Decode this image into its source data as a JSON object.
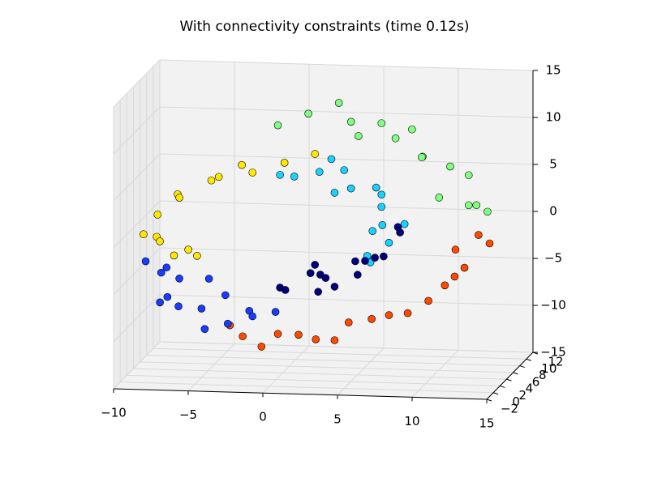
{
  "chart_data": {
    "type": "scatter3d",
    "title": "With connectivity constraints (time 0.12s)",
    "xlim": [
      -10,
      15
    ],
    "ylim": [
      -2,
      12
    ],
    "zlim": [
      -15,
      15
    ],
    "xticks": [
      {
        "value": -10,
        "label": "−10"
      },
      {
        "value": -5,
        "label": "−5"
      },
      0,
      5,
      10,
      15
    ],
    "yticks": [
      {
        "value": -2,
        "label": "−2"
      },
      0,
      2,
      4,
      6,
      8,
      10,
      12
    ],
    "zticks": [
      {
        "value": -15,
        "label": "−15"
      },
      {
        "value": -10,
        "label": "−10"
      },
      {
        "value": -5,
        "label": "−5"
      },
      0,
      5,
      10,
      15
    ],
    "grid": true,
    "series": [
      {
        "color": "#7fff7f",
        "x": [
          -0.1,
          1.5,
          3.1,
          4.8,
          6.4,
          8.0,
          9.6,
          11.0,
          11.8,
          13.2,
          13.5,
          11.8,
          10.7,
          9.1,
          6.9,
          5.3
        ],
        "y": [
          3,
          5,
          7,
          3,
          5,
          7,
          3,
          5,
          7,
          3,
          5,
          7,
          3,
          5,
          7,
          3
        ],
        "z": [
          11.7,
          12.3,
          12.8,
          12.3,
          11.5,
          10.2,
          8.8,
          7.1,
          5.5,
          3.8,
          2.4,
          2.3,
          4.5,
          8.0,
          9.2,
          10.8
        ]
      },
      {
        "color": "#ff4a00",
        "x": [
          12.9,
          13.2,
          12.4,
          11.3,
          10.2,
          8.6,
          6.9,
          5.3,
          3.7,
          2.0,
          0.4,
          -1.2,
          -2.9,
          -4.2,
          -0.1,
          4.2,
          9.1,
          11.8
        ],
        "y": [
          5,
          7,
          3,
          5,
          7,
          3,
          5,
          7,
          3,
          5,
          7,
          3,
          5,
          7,
          3,
          5,
          7,
          3
        ],
        "z": [
          -0.1,
          -1.7,
          -2.9,
          -4.6,
          -6.3,
          -7.9,
          -8.9,
          -10.1,
          -11.0,
          -11.7,
          -12.0,
          -11.9,
          -11.6,
          -11.2,
          -10.5,
          -9.8,
          -8.0,
          -1.0
        ]
      },
      {
        "color": "#1a3cff",
        "x": [
          -9.4,
          -8.8,
          -8.0,
          -7.2,
          -6.1,
          -5.0,
          -3.9,
          -2.9,
          -1.8,
          -0.7,
          -5.6,
          -6.7,
          -8.0,
          -4.5,
          -7.5
        ],
        "y": [
          5,
          7,
          3,
          5,
          7,
          3,
          5,
          7,
          3,
          5,
          7,
          3,
          5,
          7,
          3
        ],
        "z": [
          -3.9,
          -5.8,
          -7.5,
          -8.6,
          -9.5,
          -10.2,
          -10.3,
          -9.6,
          -8.7,
          -8.9,
          -6.3,
          -4.9,
          -4.5,
          -8.0,
          -6.9
        ]
      },
      {
        "color": "#ffe800",
        "x": [
          -9.1,
          -9.1,
          -8.6,
          -7.7,
          -6.7,
          -5.0,
          -3.4,
          -1.8,
          -0.1,
          1.5,
          -6.1,
          -7.5,
          -6.4,
          -8.0,
          -4.5
        ],
        "y": [
          7,
          3,
          5,
          7,
          3,
          5,
          7,
          3,
          5,
          7,
          3,
          5,
          7,
          3,
          5
        ],
        "z": [
          -2.0,
          -0.3,
          1.1,
          2.6,
          3.7,
          4.9,
          5.9,
          6.6,
          7.0,
          7.3,
          -1.8,
          -3.2,
          -3.9,
          -1.0,
          5.3
        ]
      },
      {
        "color": "#19d2ff",
        "x": [
          -0.4,
          1.0,
          2.6,
          3.9,
          4.8,
          5.6,
          6.4,
          6.9,
          7.5,
          6.9,
          6.1,
          5.0,
          5.8,
          3.7,
          1.8,
          6.4
        ],
        "y": [
          5,
          3,
          7,
          5,
          3,
          7,
          5,
          3,
          7,
          5,
          3,
          7,
          5,
          3,
          7,
          5
        ],
        "z": [
          5.7,
          6.3,
          6.8,
          6.4,
          5.2,
          3.9,
          2.6,
          1.4,
          0.1,
          -1.2,
          -2.6,
          -3.4,
          0.0,
          4.7,
          5.4,
          3.9
        ]
      },
      {
        "color": "#00007f",
        "x": [
          -0.4,
          0.4,
          1.2,
          2.3,
          3.1,
          4.2,
          5.3,
          6.4,
          7.2,
          7.5,
          2.6,
          1.5,
          4.8,
          3.7,
          6.1
        ],
        "y": [
          5,
          3,
          7,
          5,
          3,
          7,
          5,
          3,
          7,
          5,
          3,
          7,
          5,
          3,
          7
        ],
        "z": [
          -6.3,
          -5.8,
          -5.4,
          -4.8,
          -4.4,
          -4.0,
          -3.2,
          -2.1,
          -0.8,
          0.5,
          -5.9,
          -4.5,
          -4.7,
          -5.3,
          -3.4
        ]
      }
    ]
  }
}
